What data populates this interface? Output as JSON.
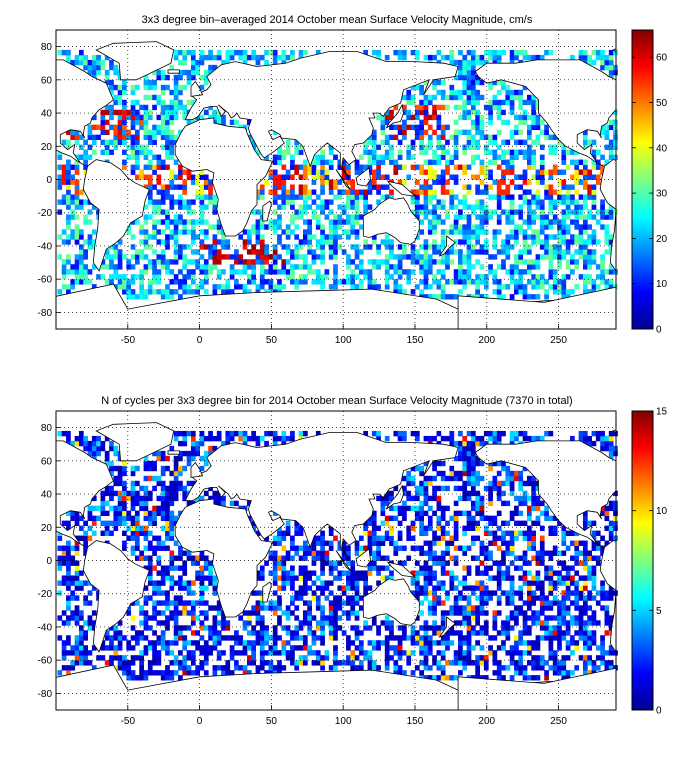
{
  "chart_data": [
    {
      "type": "heatmap",
      "title": "3x3 degree bin–averaged 2014 October mean Surface Velocity Magnitude, cm/s",
      "xlabel": "",
      "ylabel": "",
      "xlim": [
        -100,
        290
      ],
      "ylim": [
        -90,
        90
      ],
      "x_ticks": [
        "-50",
        "0",
        "50",
        "100",
        "150",
        "200",
        "250"
      ],
      "y_ticks": [
        "80",
        "60",
        "40",
        "20",
        "0",
        "-20",
        "-40",
        "-60",
        "-80"
      ],
      "colorbar": {
        "min": 0,
        "max": 66,
        "ticks": [
          "60",
          "50",
          "40",
          "30",
          "20",
          "10",
          "0"
        ],
        "colormap": "jet"
      },
      "grid": true,
      "bin_size_deg": 3
    },
    {
      "type": "heatmap",
      "title": "N of cycles per 3x3 degree bin for 2014 October mean Surface Velocity Magnitude (7370 in total)",
      "xlabel": "",
      "ylabel": "",
      "xlim": [
        -100,
        290
      ],
      "ylim": [
        -90,
        90
      ],
      "x_ticks": [
        "-50",
        "0",
        "50",
        "100",
        "150",
        "200",
        "250"
      ],
      "y_ticks": [
        "80",
        "60",
        "40",
        "20",
        "0",
        "-20",
        "-40",
        "-60",
        "-80"
      ],
      "colorbar": {
        "min": 0,
        "max": 15,
        "ticks": [
          "15",
          "10",
          "5",
          "0"
        ],
        "colormap": "jet"
      },
      "grid": true,
      "bin_size_deg": 3
    }
  ]
}
